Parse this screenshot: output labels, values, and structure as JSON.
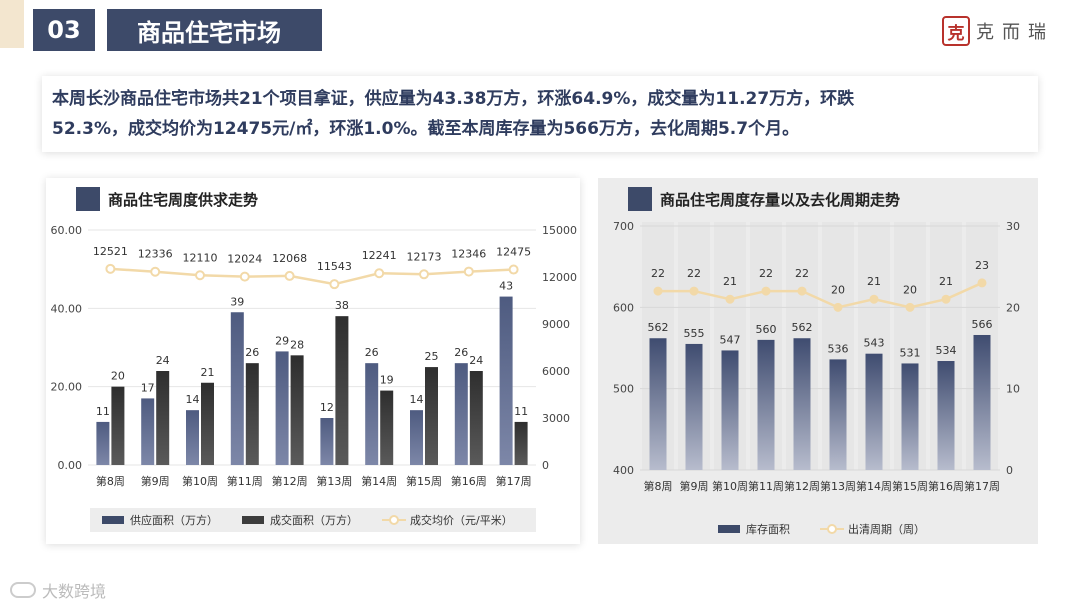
{
  "header": {
    "section_number": "03",
    "section_title": "商品住宅市场"
  },
  "logo": {
    "seal_glyph": "克",
    "text": "克而瑞"
  },
  "summary": {
    "line1": "本周长沙商品住宅市场共21个项目拿证，供应量为43.38万方，环涨64.9%，成交量为11.27万方，环跌",
    "line2": "52.3%，成交均价为12475元/㎡，环涨1.0%。截至本周库存量为566万方，去化周期5.7个月。"
  },
  "left_panel": {
    "title": "商品住宅周度供求走势"
  },
  "right_panel": {
    "title": "商品住宅周度存量以及去化周期走势"
  },
  "footer": {
    "text": "大数跨境"
  },
  "colors": {
    "navy": "#3d4a69",
    "dark_bar": "#3c3c3c",
    "line": "#f2d9a8",
    "accent_bg": "#f3e6cf"
  },
  "chart_data": [
    {
      "type": "bar",
      "title": "商品住宅周度供求走势",
      "categories": [
        "第8周",
        "第9周",
        "第10周",
        "第11周",
        "第12周",
        "第13周",
        "第14周",
        "第15周",
        "第16周",
        "第17周"
      ],
      "series": [
        {
          "name": "供应面积（万方）",
          "kind": "bar",
          "axis": "left",
          "values": [
            11,
            17,
            14,
            39,
            29,
            12,
            26,
            14,
            26,
            43
          ]
        },
        {
          "name": "成交面积（万方）",
          "kind": "bar",
          "axis": "left",
          "values": [
            20,
            24,
            21,
            26,
            28,
            38,
            19,
            25,
            24,
            11
          ]
        },
        {
          "name": "成交均价（元/平米）",
          "kind": "line",
          "axis": "right",
          "values": [
            12521,
            12336,
            12110,
            12024,
            12068,
            11543,
            12241,
            12173,
            12346,
            12475
          ]
        }
      ],
      "ylim_left": [
        0,
        60
      ],
      "ylim_right": [
        0,
        15000
      ],
      "yticks_left": [
        "0.00",
        "20.00",
        "40.00",
        "60.00"
      ],
      "yticks_right": [
        "0",
        "3000",
        "6000",
        "9000",
        "12000",
        "15000"
      ],
      "legend_position": "bottom"
    },
    {
      "type": "bar",
      "title": "商品住宅周度存量以及去化周期走势",
      "categories": [
        "第8周",
        "第9周",
        "第10周",
        "第11周",
        "第12周",
        "第13周",
        "第14周",
        "第15周",
        "第16周",
        "第17周"
      ],
      "series": [
        {
          "name": "库存面积",
          "kind": "bar",
          "axis": "left",
          "values": [
            562,
            555,
            547,
            560,
            562,
            536,
            543,
            531,
            534,
            566
          ]
        },
        {
          "name": "出清周期（周）",
          "kind": "line",
          "axis": "right",
          "values": [
            22,
            22,
            21,
            22,
            22,
            20,
            21,
            20,
            21,
            23
          ]
        }
      ],
      "ylim_left": [
        400,
        700
      ],
      "ylim_right": [
        0,
        30
      ],
      "yticks_left": [
        "400",
        "500",
        "600",
        "700"
      ],
      "yticks_right": [
        "0",
        "10",
        "20",
        "30"
      ],
      "legend_position": "bottom"
    }
  ]
}
